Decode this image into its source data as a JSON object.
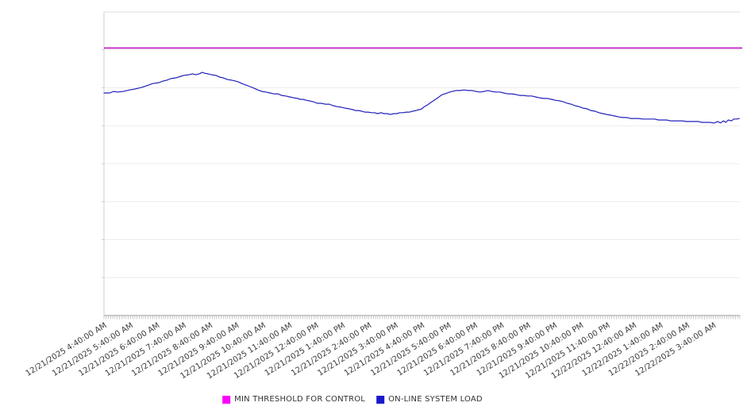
{
  "page": {
    "background": "#ffffff"
  },
  "legend": {
    "items": [
      {
        "label": "MIN THRESHOLD FOR CONTROL",
        "swatch_color": "#fb00fb"
      },
      {
        "label": "ON-LINE SYSTEM LOAD",
        "swatch_color": "#1a1acd"
      }
    ]
  },
  "chart_data": {
    "type": "line",
    "title": "",
    "xlabel": "",
    "ylabel": "",
    "legend_position": "bottom-center",
    "grid": "horizontal-only",
    "style": {
      "plot_border_top": "#dcdcdc",
      "gridline": "#ececec",
      "left_axis": "#cfcfcf",
      "bottom_axis": "#9c9c9c",
      "minor_tick": "#a0a0a0",
      "label_color": "#3c3c3c"
    },
    "x_axis": {
      "label_rotation_deg": -32,
      "minor_ticks_per_hour": 12,
      "range_hours": 24,
      "tick_labels": [
        "12/21/2025 4:40:00 AM",
        "12/21/2025 5:40:00 AM",
        "12/21/2025 6:40:00 AM",
        "12/21/2025 7:40:00 AM",
        "12/21/2025 8:40:00 AM",
        "12/21/2025 9:40:00 AM",
        "12/21/2025 10:40:00 AM",
        "12/21/2025 11:40:00 AM",
        "12/21/2025 12:40:00 PM",
        "12/21/2025 1:40:00 PM",
        "12/21/2025 2:40:00 PM",
        "12/21/2025 3:40:00 PM",
        "12/21/2025 4:40:00 PM",
        "12/21/2025 5:40:00 PM",
        "12/21/2025 6:40:00 PM",
        "12/21/2025 7:40:00 PM",
        "12/21/2025 8:40:00 PM",
        "12/21/2025 9:40:00 PM",
        "12/21/2025 10:40:00 PM",
        "12/21/2025 11:40:00 PM",
        "12/22/2025 12:40:00 AM",
        "12/22/2025 1:40:00 AM",
        "12/22/2025 2:40:00 AM",
        "12/22/2025 3:40:00 AM"
      ]
    },
    "y_axis": {
      "min": 0,
      "max": 100,
      "gridline_divisions": 8,
      "tick_labels_visible": false
    },
    "series": [
      {
        "name": "MIN THRESHOLD FOR CONTROL",
        "kind": "constant",
        "value": 88.1,
        "color": "#c313c3",
        "width": 1.6
      },
      {
        "name": "ON-LINE SYSTEM LOAD",
        "kind": "line",
        "color": "#2020bb",
        "width": 1.2,
        "points": [
          [
            0,
            73.3
          ],
          [
            0.21,
            73.3
          ],
          [
            0.36,
            73.8
          ],
          [
            0.51,
            73.6
          ],
          [
            0.72,
            73.8
          ],
          [
            0.96,
            74.3
          ],
          [
            1.17,
            74.6
          ],
          [
            1.41,
            75.1
          ],
          [
            1.62,
            75.7
          ],
          [
            1.83,
            76.4
          ],
          [
            2.07,
            76.7
          ],
          [
            2.22,
            77.2
          ],
          [
            2.37,
            77.5
          ],
          [
            2.51,
            78.0
          ],
          [
            2.72,
            78.3
          ],
          [
            2.9,
            78.8
          ],
          [
            3.02,
            79.1
          ],
          [
            3.2,
            79.3
          ],
          [
            3.35,
            79.6
          ],
          [
            3.47,
            79.3
          ],
          [
            3.59,
            79.6
          ],
          [
            3.71,
            80.1
          ],
          [
            3.8,
            79.8
          ],
          [
            3.92,
            79.6
          ],
          [
            4.07,
            79.3
          ],
          [
            4.22,
            79.1
          ],
          [
            4.37,
            78.5
          ],
          [
            4.49,
            78.3
          ],
          [
            4.67,
            77.7
          ],
          [
            4.82,
            77.5
          ],
          [
            4.97,
            77.2
          ],
          [
            5.06,
            77.0
          ],
          [
            5.21,
            76.4
          ],
          [
            5.36,
            75.9
          ],
          [
            5.51,
            75.4
          ],
          [
            5.66,
            74.9
          ],
          [
            5.81,
            74.3
          ],
          [
            5.96,
            73.8
          ],
          [
            6.11,
            73.6
          ],
          [
            6.26,
            73.3
          ],
          [
            6.41,
            73.0
          ],
          [
            6.56,
            73.0
          ],
          [
            6.71,
            72.5
          ],
          [
            6.86,
            72.3
          ],
          [
            7.01,
            72.0
          ],
          [
            7.16,
            71.7
          ],
          [
            7.31,
            71.5
          ],
          [
            7.4,
            71.2
          ],
          [
            7.51,
            71.2
          ],
          [
            7.63,
            70.9
          ],
          [
            7.75,
            70.7
          ],
          [
            7.9,
            70.4
          ],
          [
            8.05,
            69.9
          ],
          [
            8.2,
            69.9
          ],
          [
            8.35,
            69.6
          ],
          [
            8.5,
            69.6
          ],
          [
            8.65,
            69.1
          ],
          [
            8.8,
            68.8
          ],
          [
            8.95,
            68.6
          ],
          [
            9.1,
            68.3
          ],
          [
            9.25,
            68.1
          ],
          [
            9.4,
            67.8
          ],
          [
            9.49,
            67.5
          ],
          [
            9.61,
            67.5
          ],
          [
            9.73,
            67.3
          ],
          [
            9.85,
            67.0
          ],
          [
            9.97,
            67.0
          ],
          [
            10.09,
            66.8
          ],
          [
            10.21,
            66.8
          ],
          [
            10.33,
            66.5
          ],
          [
            10.45,
            66.8
          ],
          [
            10.57,
            66.5
          ],
          [
            10.69,
            66.5
          ],
          [
            10.81,
            66.2
          ],
          [
            10.93,
            66.5
          ],
          [
            11.05,
            66.5
          ],
          [
            11.17,
            66.8
          ],
          [
            11.29,
            66.8
          ],
          [
            11.41,
            67.0
          ],
          [
            11.53,
            67.0
          ],
          [
            11.65,
            67.3
          ],
          [
            11.77,
            67.5
          ],
          [
            11.89,
            67.8
          ],
          [
            12.0,
            68.1
          ],
          [
            12.06,
            68.6
          ],
          [
            12.16,
            69.1
          ],
          [
            12.25,
            69.6
          ],
          [
            12.34,
            70.2
          ],
          [
            12.43,
            70.7
          ],
          [
            12.51,
            71.2
          ],
          [
            12.6,
            71.7
          ],
          [
            12.69,
            72.3
          ],
          [
            12.78,
            72.8
          ],
          [
            12.87,
            73.0
          ],
          [
            12.96,
            73.3
          ],
          [
            13.05,
            73.6
          ],
          [
            13.14,
            73.8
          ],
          [
            13.29,
            74.1
          ],
          [
            13.44,
            74.1
          ],
          [
            13.59,
            74.3
          ],
          [
            13.74,
            74.1
          ],
          [
            13.89,
            74.1
          ],
          [
            14.04,
            73.8
          ],
          [
            14.19,
            73.6
          ],
          [
            14.34,
            73.8
          ],
          [
            14.49,
            74.1
          ],
          [
            14.64,
            73.8
          ],
          [
            14.79,
            73.6
          ],
          [
            14.94,
            73.6
          ],
          [
            15.09,
            73.3
          ],
          [
            15.24,
            73.0
          ],
          [
            15.39,
            73.0
          ],
          [
            15.54,
            72.8
          ],
          [
            15.69,
            72.5
          ],
          [
            15.84,
            72.5
          ],
          [
            15.99,
            72.3
          ],
          [
            16.14,
            72.3
          ],
          [
            16.29,
            72.0
          ],
          [
            16.44,
            71.7
          ],
          [
            16.59,
            71.5
          ],
          [
            16.74,
            71.5
          ],
          [
            16.89,
            71.2
          ],
          [
            17.04,
            70.9
          ],
          [
            17.19,
            70.7
          ],
          [
            17.34,
            70.4
          ],
          [
            17.49,
            69.9
          ],
          [
            17.63,
            69.6
          ],
          [
            17.78,
            69.1
          ],
          [
            17.93,
            68.8
          ],
          [
            18.08,
            68.3
          ],
          [
            18.23,
            68.1
          ],
          [
            18.38,
            67.5
          ],
          [
            18.53,
            67.3
          ],
          [
            18.68,
            66.8
          ],
          [
            18.83,
            66.5
          ],
          [
            18.98,
            66.2
          ],
          [
            19.13,
            66.0
          ],
          [
            19.28,
            65.7
          ],
          [
            19.43,
            65.4
          ],
          [
            19.58,
            65.2
          ],
          [
            19.73,
            65.2
          ],
          [
            19.88,
            64.9
          ],
          [
            20.03,
            64.9
          ],
          [
            20.18,
            64.9
          ],
          [
            20.33,
            64.7
          ],
          [
            20.48,
            64.7
          ],
          [
            20.63,
            64.7
          ],
          [
            20.78,
            64.7
          ],
          [
            20.93,
            64.4
          ],
          [
            21.08,
            64.4
          ],
          [
            21.23,
            64.4
          ],
          [
            21.38,
            64.1
          ],
          [
            21.53,
            64.1
          ],
          [
            21.68,
            64.1
          ],
          [
            21.83,
            64.1
          ],
          [
            21.98,
            63.9
          ],
          [
            22.13,
            63.9
          ],
          [
            22.28,
            63.9
          ],
          [
            22.43,
            63.9
          ],
          [
            22.57,
            63.6
          ],
          [
            22.72,
            63.6
          ],
          [
            22.87,
            63.6
          ],
          [
            23.02,
            63.4
          ],
          [
            23.17,
            63.9
          ],
          [
            23.26,
            63.4
          ],
          [
            23.38,
            64.1
          ],
          [
            23.47,
            63.6
          ],
          [
            23.56,
            64.4
          ],
          [
            23.68,
            64.1
          ],
          [
            23.77,
            64.7
          ],
          [
            23.89,
            64.7
          ],
          [
            23.98,
            64.9
          ]
        ]
      }
    ]
  }
}
